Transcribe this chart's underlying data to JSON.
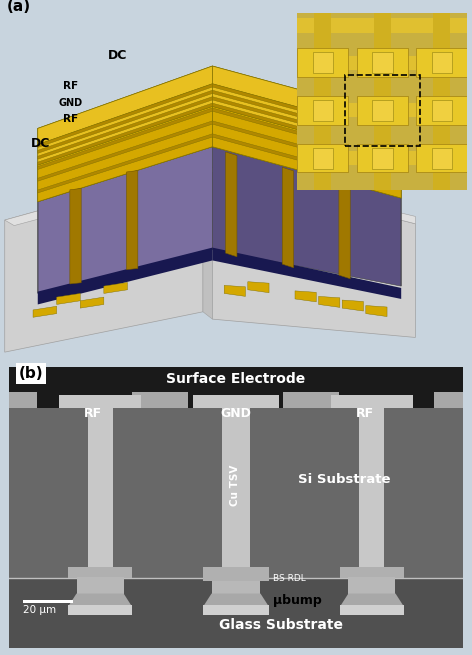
{
  "fig_width": 4.72,
  "fig_height": 6.55,
  "dpi": 100,
  "bg_color": "#c8d4de",
  "gold_bright": "#E8C020",
  "gold_mid": "#D4A800",
  "gold_dark": "#B08800",
  "gold_edge": "#807000",
  "purple_top": "#6B5F90",
  "purple_side_l": "#7A6EA0",
  "purple_side_r": "#5A5080",
  "gray_base": "#D0D0D0",
  "gray_base_side": "#B8B8B8",
  "blue_strip": "#181850",
  "tsv_gold": "#A87800",
  "si_bg": "#686868",
  "si_darker": "#585858",
  "dark_top": "#1e1e1e",
  "surf_bar": "#B0B0B0",
  "pillar_light": "#B8B8B8",
  "pillar_lighter": "#C8C8C8",
  "glass_bg": "#585858",
  "bump_light": "#C0C0C0",
  "bump_lighter": "#D0D0D0",
  "inset_bg": "#c8b050",
  "panel_a_label": "(a)",
  "panel_b_label": "(b)",
  "surface_electrode_label": "Surface Electrode",
  "rf_label": "RF",
  "gnd_label": "GND",
  "cu_tsv_label": "Cu TSV",
  "si_substrate_label": "Si Substrate",
  "bs_rdl_label": "BS RDL",
  "ubump_label": "μbump",
  "glass_substrate_label": "Glass Substrate",
  "scale_bar_label": "20 μm",
  "dc_label": "DC",
  "dc_label2": "DC"
}
